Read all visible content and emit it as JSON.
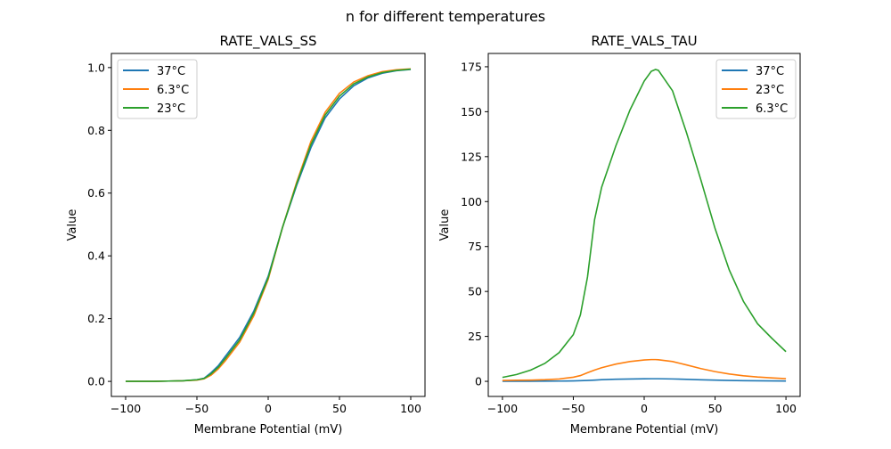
{
  "figure_title": "n for different temperatures",
  "chart_data": [
    {
      "type": "line",
      "title": "RATE_VALS_SS",
      "xlabel": "Membrane Potential (mV)",
      "ylabel": "Value",
      "xlim": [
        -110,
        110
      ],
      "ylim": [
        -0.048,
        1.045
      ],
      "xticks": [
        -100,
        -50,
        0,
        50,
        100
      ],
      "xtick_labels": [
        "−100",
        "−50",
        "0",
        "50",
        "100"
      ],
      "yticks": [
        0.0,
        0.2,
        0.4,
        0.6,
        0.8,
        1.0
      ],
      "ytick_labels": [
        "0.0",
        "0.2",
        "0.4",
        "0.6",
        "0.8",
        "1.0"
      ],
      "grid": false,
      "legend_position": "upper-left",
      "x": [
        -100,
        -90,
        -80,
        -70,
        -60,
        -50,
        -45,
        -40,
        -35,
        -30,
        -20,
        -10,
        0,
        10,
        20,
        30,
        40,
        50,
        60,
        70,
        80,
        90,
        100
      ],
      "series": [
        {
          "name": "37°C",
          "color": "#1f77b4",
          "values": [
            0,
            0,
            0,
            0.001,
            0.002,
            0.005,
            0.01,
            0.028,
            0.05,
            0.08,
            0.14,
            0.225,
            0.335,
            0.49,
            0.625,
            0.745,
            0.84,
            0.9,
            0.942,
            0.967,
            0.982,
            0.99,
            0.994
          ]
        },
        {
          "name": "6.3°C",
          "color": "#ff7f0e",
          "values": [
            0,
            0,
            0,
            0.001,
            0.002,
            0.004,
            0.008,
            0.02,
            0.04,
            0.066,
            0.125,
            0.21,
            0.325,
            0.49,
            0.635,
            0.765,
            0.858,
            0.918,
            0.954,
            0.974,
            0.987,
            0.993,
            0.996
          ]
        },
        {
          "name": "23°C",
          "color": "#2ca02c",
          "values": [
            0,
            0,
            0,
            0.001,
            0.002,
            0.005,
            0.009,
            0.024,
            0.045,
            0.073,
            0.132,
            0.218,
            0.33,
            0.49,
            0.63,
            0.755,
            0.849,
            0.909,
            0.948,
            0.97,
            0.984,
            0.991,
            0.995
          ]
        }
      ]
    },
    {
      "type": "line",
      "title": "RATE_VALS_TAU",
      "xlabel": "Membrane Potential (mV)",
      "ylabel": "Value",
      "xlim": [
        -110,
        110
      ],
      "ylim": [
        -8.4,
        182.4
      ],
      "xticks": [
        -100,
        -50,
        0,
        50,
        100
      ],
      "xtick_labels": [
        "−100",
        "−50",
        "0",
        "50",
        "100"
      ],
      "yticks": [
        0,
        25,
        50,
        75,
        100,
        125,
        150,
        175
      ],
      "ytick_labels": [
        "0",
        "25",
        "50",
        "75",
        "100",
        "125",
        "150",
        "175"
      ],
      "grid": false,
      "legend_position": "upper-right",
      "x": [
        -100,
        -90,
        -80,
        -70,
        -60,
        -50,
        -45,
        -40,
        -35,
        -30,
        -20,
        -10,
        0,
        5,
        8,
        10,
        20,
        30,
        40,
        50,
        60,
        70,
        80,
        90,
        100
      ],
      "series": [
        {
          "name": "37°C",
          "color": "#1f77b4",
          "values": [
            0.06,
            0.07,
            0.08,
            0.11,
            0.15,
            0.25,
            0.35,
            0.5,
            0.7,
            0.9,
            1.15,
            1.3,
            1.42,
            1.45,
            1.45,
            1.45,
            1.33,
            1.1,
            0.85,
            0.66,
            0.5,
            0.38,
            0.3,
            0.24,
            0.19
          ]
        },
        {
          "name": "23°C",
          "color": "#ff7f0e",
          "values": [
            0.5,
            0.6,
            0.7,
            0.9,
            1.3,
            2.3,
            3.2,
            4.8,
            6.3,
            7.6,
            9.6,
            11.0,
            11.9,
            12.1,
            12.1,
            12.0,
            11.0,
            9.1,
            7.1,
            5.4,
            4.1,
            3.1,
            2.4,
            1.9,
            1.5
          ]
        },
        {
          "name": "6.3°C",
          "color": "#2ca02c",
          "values": [
            2.2,
            3.8,
            6.3,
            10.0,
            16.0,
            26.0,
            37.0,
            58.0,
            90.0,
            108.0,
            131.0,
            151.0,
            167.0,
            172.5,
            173.5,
            173.0,
            161.6,
            138.0,
            112.0,
            85.0,
            62.0,
            44.5,
            32.0,
            24.0,
            16.5
          ]
        }
      ]
    }
  ]
}
